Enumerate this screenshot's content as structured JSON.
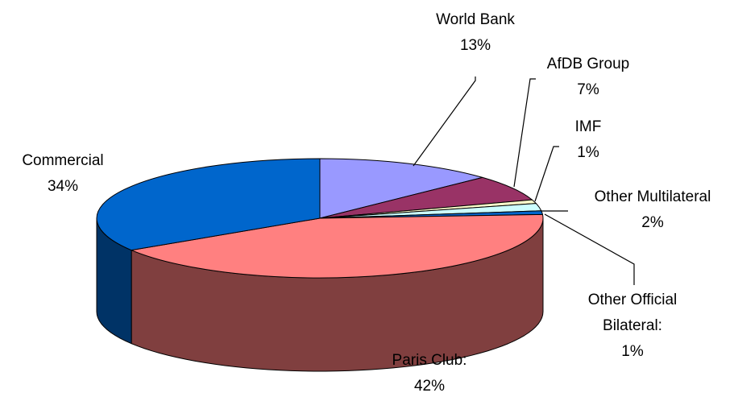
{
  "chart_data": {
    "type": "pie",
    "style": "3d",
    "categories": [
      "World Bank",
      "AfDB Group",
      "IMF",
      "Other Multilateral",
      "Other Official Bilateral:",
      "Paris Club:",
      "Commercial"
    ],
    "values": [
      13,
      7,
      1,
      2,
      1,
      42,
      34
    ],
    "value_labels": [
      "13%",
      "7%",
      "1%",
      "2%",
      "1%",
      "42%",
      "34%"
    ],
    "label_lines": [
      [
        "World Bank",
        "13%"
      ],
      [
        "AfDB Group",
        "7%"
      ],
      [
        "IMF",
        "1%"
      ],
      [
        "Other Multilateral",
        "2%"
      ],
      [
        "Other Official",
        "Bilateral:",
        "1%"
      ],
      [
        "Paris Club:",
        "42%"
      ],
      [
        "Commercial",
        "34%"
      ]
    ],
    "colors_top": [
      "#9999ff",
      "#993366",
      "#ffffcc",
      "#ccffff",
      "#0066cc",
      "#ff8080",
      "#0066cc"
    ],
    "colors_side": [
      "#5c5c99",
      "#5c1f3d",
      "#99997a",
      "#7a9999",
      "#003d7a",
      "#803f3f",
      "#003366"
    ],
    "legend": "none",
    "title": ""
  }
}
